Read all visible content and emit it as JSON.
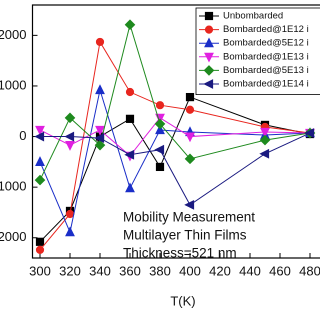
{
  "chart_data": {
    "type": "line",
    "x_label": "T(K)",
    "annotation": [
      "Mobility Measurement",
      "Multilayer Thin Films",
      "Thickness=521 nm"
    ],
    "x": [
      300,
      320,
      340,
      360,
      380,
      400,
      450,
      480
    ],
    "xlim": [
      295,
      485
    ],
    "xticks": [
      300,
      320,
      340,
      360,
      380,
      400,
      420,
      440,
      460,
      480
    ],
    "ylim": [
      -2400,
      2600
    ],
    "yticks": [
      -2000,
      -1000,
      0,
      1000,
      2000
    ],
    "series": [
      {
        "name": "Unbombarded",
        "color": "#000000",
        "marker": "square",
        "values": [
          -2080,
          -1470,
          0,
          350,
          -600,
          780,
          230,
          50
        ]
      },
      {
        "name": "Bombarded@1E12 i",
        "color": "#e8261f",
        "marker": "circle",
        "values": [
          -2240,
          -1530,
          1870,
          880,
          620,
          530,
          190,
          70
        ]
      },
      {
        "name": "Bombarded@5E12 i",
        "color": "#1a2ec8",
        "marker": "triangle-up",
        "values": [
          -500,
          -1890,
          920,
          -1020,
          130,
          90,
          30,
          70
        ]
      },
      {
        "name": "Bombarded@1E13 i",
        "color": "#e020e0",
        "marker": "triangle-down",
        "values": [
          130,
          -170,
          130,
          -380,
          370,
          0,
          90,
          70
        ]
      },
      {
        "name": "Bombarded@5E13 i",
        "color": "#1e8a1e",
        "marker": "diamond",
        "values": [
          -860,
          370,
          -170,
          2210,
          250,
          -440,
          -70,
          70
        ]
      },
      {
        "name": "Bombarded@1E14 i",
        "color": "#1a1a80",
        "marker": "triangle-left",
        "values": [
          0,
          0,
          -30,
          -360,
          -260,
          -1350,
          -340,
          70
        ]
      }
    ]
  }
}
